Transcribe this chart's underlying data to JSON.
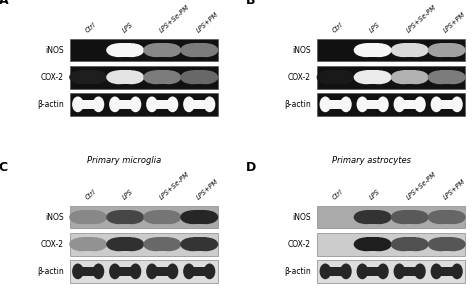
{
  "panel_labels": [
    "A",
    "B",
    "C",
    "D"
  ],
  "panel_titles": [
    "Primary microglia",
    "Primary astrocytes",
    "Primary microglia",
    "Primary astrocytes"
  ],
  "lane_labels": [
    "Ctrl",
    "LPS",
    "LPS+Se-PM",
    "LPS+PM"
  ],
  "row_labels": [
    "iNOS",
    "COX-2",
    "β-actin"
  ],
  "panel_A_iNOS": [
    0.0,
    1.0,
    0.55,
    0.5
  ],
  "panel_A_COX2": [
    0.12,
    0.92,
    0.5,
    0.42
  ],
  "panel_A_bactin": [
    1.0,
    1.0,
    1.0,
    1.0
  ],
  "panel_B_iNOS": [
    0.0,
    1.0,
    0.88,
    0.65
  ],
  "panel_B_COX2": [
    0.1,
    0.95,
    0.72,
    0.5
  ],
  "panel_B_bactin": [
    1.0,
    1.0,
    1.0,
    1.0
  ],
  "panel_C_iNOS": [
    0.03,
    0.55,
    0.18,
    0.8
  ],
  "panel_C_COX2": [
    0.05,
    0.75,
    0.35,
    0.72
  ],
  "panel_C_bactin": [
    1.0,
    1.0,
    1.0,
    1.0
  ],
  "panel_D_iNOS": [
    0.0,
    0.7,
    0.4,
    0.3
  ],
  "panel_D_COX2": [
    0.0,
    0.88,
    0.52,
    0.48
  ],
  "panel_D_bactin": [
    1.0,
    1.0,
    1.0,
    1.0
  ]
}
